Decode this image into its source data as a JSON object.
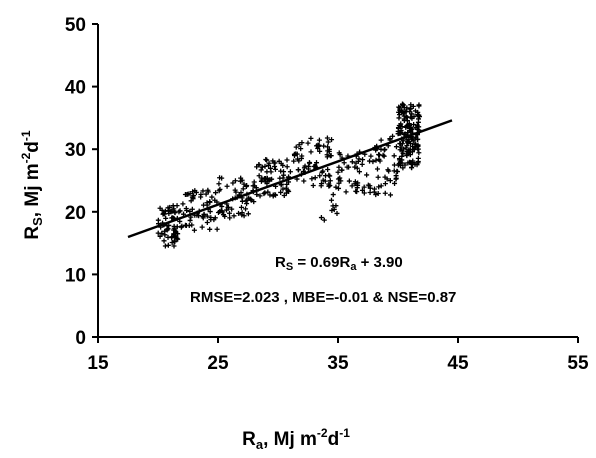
{
  "chart_data": {
    "type": "scatter",
    "title": "",
    "xlabel": {
      "base": "R",
      "sub": "a",
      "mid": ", Mj m",
      "sup1": "-2",
      "d": "d",
      "sup2": "-1"
    },
    "ylabel": {
      "base": "R",
      "sub": "S",
      "mid": ", Mj m",
      "sup1": "-2",
      "d": "d",
      "sup2": "-1"
    },
    "xlim": [
      15,
      55
    ],
    "ylim": [
      0,
      50
    ],
    "xticks": [
      "15",
      "25",
      "35",
      "45",
      "55"
    ],
    "yticks": [
      "0",
      "10",
      "20",
      "30",
      "40",
      "50"
    ],
    "grid": false,
    "legend": "none",
    "marker": "+",
    "marker_color": "#000000",
    "trendline": {
      "slope": 0.69,
      "intercept": 3.9,
      "x_range": [
        17.5,
        44.5
      ]
    },
    "annotations": {
      "equation": {
        "r": "R",
        "s_sub": "S",
        "eq": " = 0.69R",
        "a_sub": "a",
        "tail": " + 3.90"
      },
      "stats": "RMSE=2.023 , MBE=-0.01 & NSE=0.87"
    },
    "point_clusters": [
      {
        "x_range": [
          20.0,
          22.0
        ],
        "y_range": [
          14.5,
          21.0
        ],
        "count": 70
      },
      {
        "x_range": [
          22.0,
          25.0
        ],
        "y_range": [
          17.0,
          23.5
        ],
        "count": 60
      },
      {
        "x_range": [
          25.0,
          28.0
        ],
        "y_range": [
          19.0,
          25.5
        ],
        "count": 60
      },
      {
        "x_range": [
          28.0,
          31.0
        ],
        "y_range": [
          22.5,
          28.5
        ],
        "count": 70
      },
      {
        "x_range": [
          31.0,
          34.5
        ],
        "y_range": [
          24.0,
          31.8
        ],
        "count": 70
      },
      {
        "x_range": [
          33.5,
          35.0
        ],
        "y_range": [
          18.0,
          26.0
        ],
        "count": 12
      },
      {
        "x_range": [
          35.0,
          38.0
        ],
        "y_range": [
          23.0,
          30.0
        ],
        "count": 50
      },
      {
        "x_range": [
          38.0,
          40.0
        ],
        "y_range": [
          22.5,
          32.5
        ],
        "count": 45
      },
      {
        "x_range": [
          40.0,
          41.8
        ],
        "y_range": [
          27.0,
          37.5
        ],
        "count": 160
      }
    ]
  }
}
